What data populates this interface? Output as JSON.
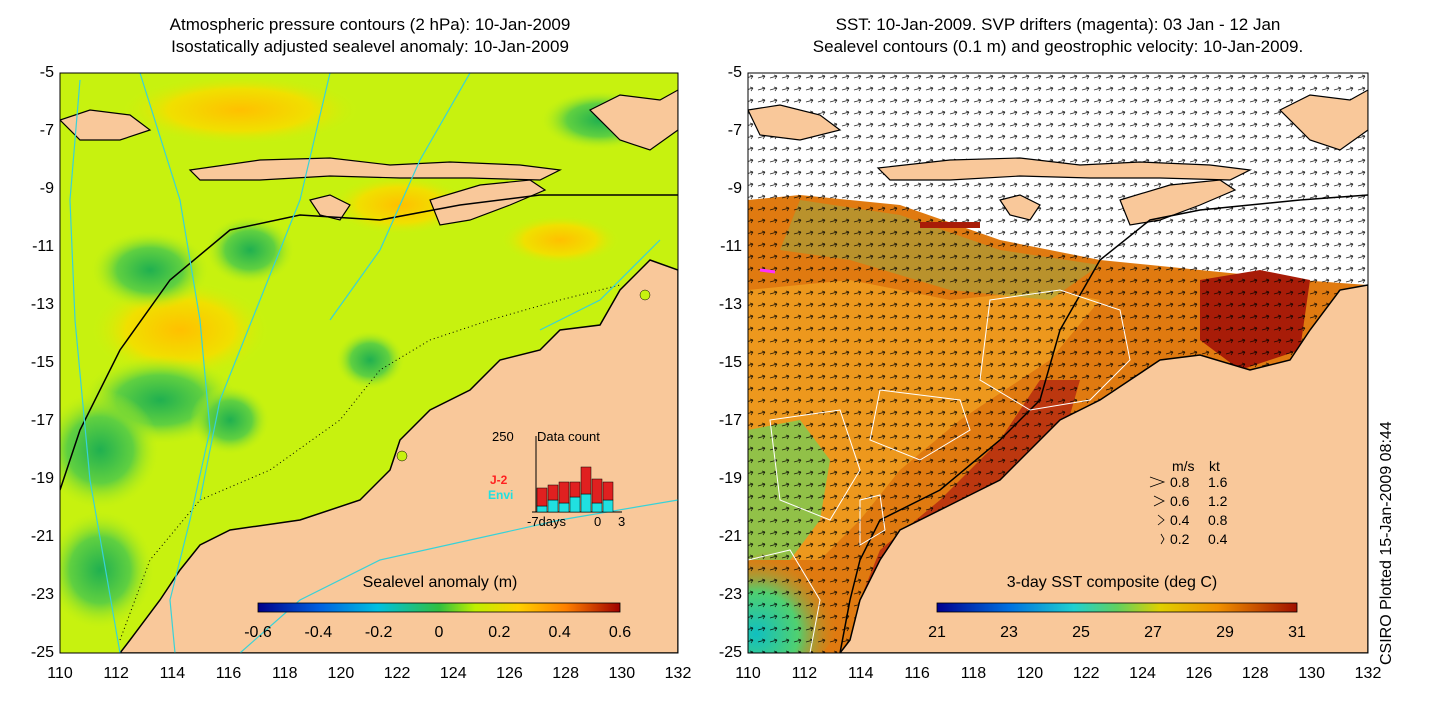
{
  "left_panel": {
    "title_line1": "Atmospheric pressure contours (2 hPa): 10-Jan-2009",
    "title_line2": "Isostatically adjusted sealevel anomaly: 10-Jan-2009",
    "colorbar_title": "Sealevel anomaly (m)",
    "colorbar_ticks": [
      "-0.6",
      "-0.4",
      "-0.2",
      "0",
      "0.2",
      "0.4",
      "0.6"
    ],
    "inset": {
      "count_label": "250",
      "title": "Data count",
      "legend_j2": "J-2",
      "legend_envi": "Envi",
      "x_labels": [
        "-7days",
        "0",
        "3"
      ]
    }
  },
  "right_panel": {
    "title_line1": "SST: 10-Jan-2009. SVP drifters (magenta): 03 Jan - 12 Jan",
    "title_line2": "Sealevel contours (0.1 m) and geostrophic velocity: 10-Jan-2009.",
    "colorbar_title": "3-day SST composite (deg C)",
    "colorbar_ticks": [
      "21",
      "23",
      "25",
      "27",
      "29",
      "31"
    ],
    "velocity_legend": {
      "header_ms": "m/s",
      "header_kt": "kt",
      "rows": [
        {
          "ms": "0.8",
          "kt": "1.6"
        },
        {
          "ms": "0.6",
          "kt": "1.2"
        },
        {
          "ms": "0.4",
          "kt": "0.8"
        },
        {
          "ms": "0.2",
          "kt": "0.4"
        }
      ]
    }
  },
  "axes": {
    "y_ticks": [
      "-5",
      "-7",
      "-9",
      "-11",
      "-13",
      "-15",
      "-17",
      "-19",
      "-21",
      "-23",
      "-25"
    ],
    "x_ticks": [
      "110",
      "112",
      "114",
      "116",
      "118",
      "120",
      "122",
      "124",
      "126",
      "128",
      "130",
      "132"
    ]
  },
  "side_text": "CSIRO Plotted 15-Jan-2009 08:44",
  "colors": {
    "land": "#f9c89a",
    "sla_base": "#c7f20f",
    "sst_warm": "#e07a10",
    "sst_hot": "#a81c08",
    "contour": "#38d2d8"
  }
}
